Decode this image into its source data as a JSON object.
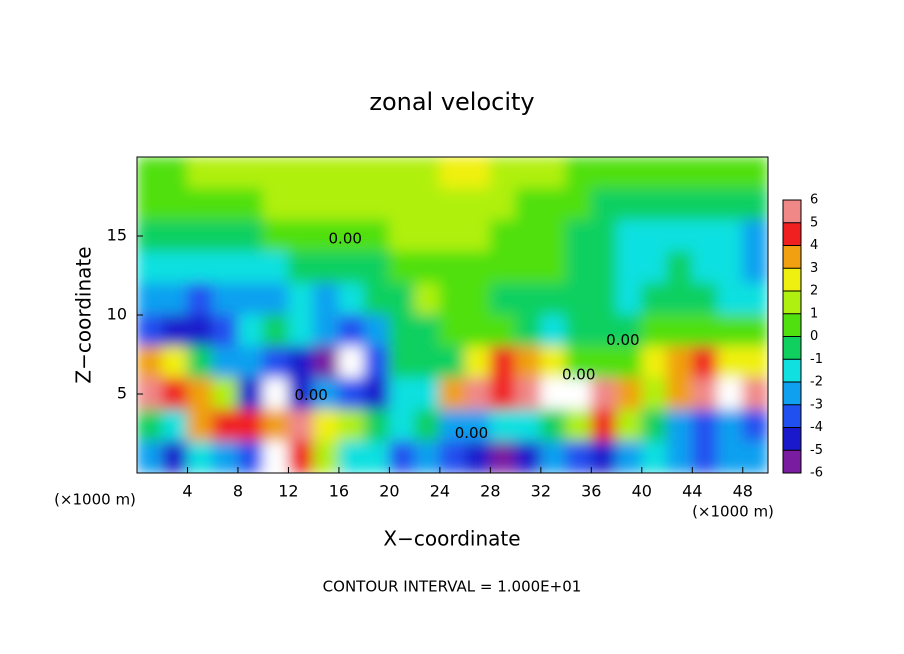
{
  "chart_data": {
    "type": "contour",
    "title": "zonal velocity",
    "x_label": "X−coordinate",
    "y_label": "Z−coordinate",
    "x_unit_label": "(×1000 m)",
    "x_unit_label_right": "(×1000 m)",
    "note": "CONTOUR INTERVAL = 1.000E+01",
    "xlim": [
      0,
      50
    ],
    "ylim": [
      0,
      20
    ],
    "xticks": [
      4,
      8,
      12,
      16,
      20,
      24,
      28,
      32,
      36,
      40,
      44,
      48
    ],
    "yticks": [
      5,
      10,
      15
    ],
    "x": [
      1,
      3,
      5,
      7,
      9,
      11,
      13,
      15,
      17,
      19,
      21,
      23,
      25,
      27,
      29,
      31,
      33,
      35,
      37,
      39,
      41,
      43,
      45,
      47,
      49
    ],
    "z": [
      19,
      17,
      15,
      13,
      11,
      9,
      7,
      5,
      3,
      1
    ],
    "values": [
      [
        0.8,
        0.8,
        1,
        1,
        1,
        1.2,
        1.2,
        1.2,
        1.5,
        1.5,
        1.5,
        1.8,
        2,
        2,
        1.5,
        1.2,
        1,
        0.8,
        0.5,
        0.3,
        0.3,
        0.3,
        0.3,
        0.3,
        0.3
      ],
      [
        0.5,
        0.5,
        0.6,
        0.8,
        0.8,
        1,
        1,
        1,
        1,
        1.2,
        1.2,
        1.2,
        1.2,
        1.2,
        1,
        0.8,
        0.5,
        0,
        -0.3,
        -0.5,
        -0.5,
        -0.3,
        -0.5,
        -0.8,
        -1
      ],
      [
        -0.5,
        -0.3,
        -0.3,
        -0.2,
        -0.2,
        0,
        0.3,
        0.5,
        0.5,
        0.8,
        1,
        1,
        1,
        1,
        0.8,
        0.5,
        0.2,
        -0.2,
        -1,
        -2,
        -2,
        -1.5,
        -1.5,
        -2,
        -2.5
      ],
      [
        -2,
        -1.5,
        -1.5,
        -1.5,
        -1.5,
        -1.2,
        -1,
        -0.8,
        -0.5,
        -0.2,
        0.3,
        0.5,
        0.5,
        0.5,
        0.3,
        0.2,
        0,
        -0.5,
        -1,
        -2,
        -1.5,
        -1,
        -1.5,
        -2,
        -2.5
      ],
      [
        -3,
        -3,
        -3.5,
        -3,
        -3,
        -2.5,
        -2,
        -2.5,
        -2,
        -1,
        -0.5,
        1,
        0.5,
        0.3,
        -0.3,
        -1,
        -0.5,
        -0.5,
        -1,
        -1.2,
        -1,
        -0.5,
        -1,
        -1.5,
        -2
      ],
      [
        -3.5,
        -5,
        -4.5,
        -3.5,
        -2,
        -1,
        -2,
        -3,
        -3.5,
        -2.5,
        -1,
        -0.5,
        0,
        0.3,
        0,
        -1,
        -2,
        -1,
        -0.5,
        -0.3,
        0,
        0.3,
        0.5,
        0.5,
        0.5
      ],
      [
        3,
        2,
        -1,
        -3,
        -3,
        -4,
        -5,
        -5.5,
        -7,
        -4,
        -1,
        -1,
        -0.5,
        2,
        4,
        3.5,
        2,
        0.8,
        0.3,
        0.5,
        2,
        3,
        4,
        2,
        2
      ],
      [
        5,
        4,
        3,
        1,
        -5,
        -7,
        -5,
        -3,
        -4,
        -5,
        -2,
        -2,
        3,
        5,
        4,
        5,
        7,
        7,
        5,
        3,
        1,
        3,
        6,
        -7,
        5
      ],
      [
        -1,
        -2,
        3,
        4,
        4,
        3,
        5,
        2,
        1,
        -1,
        -2,
        -1,
        -3,
        -3,
        -2,
        -2,
        -1,
        1,
        4,
        1,
        -1,
        -3,
        -4,
        -3,
        -4
      ],
      [
        -3,
        -5,
        -2,
        -3,
        -4,
        7,
        4,
        1,
        -2,
        -2,
        -4,
        -3,
        -4,
        -5,
        -6,
        -5,
        -3,
        -4,
        -5,
        -3,
        -2,
        -3,
        -4,
        -3,
        -3
      ]
    ],
    "colorbar": {
      "ticks": [
        -6,
        -5,
        -4,
        -3,
        -2,
        -1,
        0,
        1,
        2,
        3,
        4,
        5,
        6
      ],
      "colors": [
        "#7a1ca0",
        "#1a1acc",
        "#2050f0",
        "#10a0f0",
        "#10e0e0",
        "#10d060",
        "#50e010",
        "#b0f010",
        "#f0f010",
        "#f0a010",
        "#f02020",
        "#f08888"
      ],
      "out_of_range_color": "#ffffff"
    },
    "contour_labels": [
      {
        "label": "0.00",
        "value": 0,
        "x": 16.5,
        "z": 14.8
      },
      {
        "label": "0.00",
        "value": 0,
        "x": 38.5,
        "z": 8.4
      },
      {
        "label": "0.00",
        "value": 0,
        "x": 35.0,
        "z": 6.2
      },
      {
        "label": "0.00",
        "value": 0,
        "x": 13.8,
        "z": 4.9
      },
      {
        "label": "0.00",
        "value": 0,
        "x": 26.5,
        "z": 2.5
      }
    ]
  }
}
